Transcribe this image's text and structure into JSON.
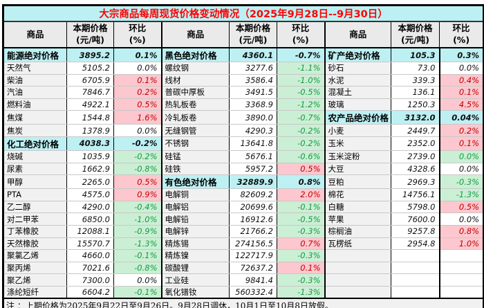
{
  "title": "大宗商品每周现货价格变动情况（2025年9月28日--9月30日）",
  "header": {
    "commodity": "商品",
    "price_top": "本期价格",
    "price_bottom": "(元/吨)",
    "change_top": "环比",
    "change_bottom": "(%)"
  },
  "note": "注 ：上期价格为2025年9月22日至9月26日。9月28日调休，10月1日至10月8日放假。",
  "colors": {
    "title_bar_bg": "#BDF0F3",
    "title_text": "#FF0000",
    "category_row_bg": "#BDF0F3",
    "increase_bg": "#FCC7CE",
    "increase_text": "#C00000",
    "decrease_bg": "#CBEFD4",
    "decrease_text": "#169A44",
    "header_bg": "#EAEAEA",
    "name_col_bg": "#F1F1F1",
    "note_bg": "#F1F1F1"
  },
  "groups": [
    {
      "rows": [
        {
          "name": "能源绝对价格",
          "price": "3895.2",
          "change": "0.1%",
          "style": "category"
        },
        {
          "name": "天然气",
          "price": "5105.2",
          "change": "0.0%",
          "style": "flat"
        },
        {
          "name": "柴油",
          "price": "6705.9",
          "change": "0.1%",
          "style": "up"
        },
        {
          "name": "汽油",
          "price": "7846.7",
          "change": "0.2%",
          "style": "up"
        },
        {
          "name": "燃料油",
          "price": "4922.1",
          "change": "0.5%",
          "style": "up"
        },
        {
          "name": "焦煤",
          "price": "1544.8",
          "change": "1.6%",
          "style": "up"
        },
        {
          "name": "焦炭",
          "price": "1378.9",
          "change": "0.0%",
          "style": "flat"
        },
        {
          "name": "化工绝对价格",
          "price": "4038.3",
          "change": "-0.2%",
          "style": "category"
        },
        {
          "name": "烧碱",
          "price": "1035.9",
          "change": "-0.2%",
          "style": "down"
        },
        {
          "name": "尿素",
          "price": "1662.9",
          "change": "-0.8%",
          "style": "down"
        },
        {
          "name": "甲醇",
          "price": "2265.0",
          "change": "0.5%",
          "style": "up"
        },
        {
          "name": "PTA",
          "price": "4575.0",
          "change": "0.9%",
          "style": "up"
        },
        {
          "name": "乙二醇",
          "price": "4290.0",
          "change": "-0.4%",
          "style": "down"
        },
        {
          "name": "对二甲苯",
          "price": "6850.0",
          "change": "-1.0%",
          "style": "down"
        },
        {
          "name": "丁苯橡胶",
          "price": "12088.1",
          "change": "-0.9%",
          "style": "down"
        },
        {
          "name": "天然橡胶",
          "price": "15570.7",
          "change": "-1.3%",
          "style": "down"
        },
        {
          "name": "聚氯乙烯",
          "price": "4660.0",
          "change": "-0.1%",
          "style": "down"
        },
        {
          "name": "聚丙烯",
          "price": "7021.6",
          "change": "-0.8%",
          "style": "down"
        },
        {
          "name": "聚乙烯",
          "price": "7300.0",
          "change": "0.0%",
          "style": "flat"
        },
        {
          "name": "涤纶短纤",
          "price": "6604.2",
          "change": "-0.1%",
          "style": "down"
        }
      ]
    },
    {
      "rows": [
        {
          "name": "黑色绝对价格",
          "price": "4360.1",
          "change": "-0.7%",
          "style": "category"
        },
        {
          "name": "螺纹钢",
          "price": "3277.6",
          "change": "-1.1%",
          "style": "down"
        },
        {
          "name": "线材",
          "price": "3586.4",
          "change": "-1.0%",
          "style": "down"
        },
        {
          "name": "普碳中厚板",
          "price": "3491.5",
          "change": "-0.5%",
          "style": "down"
        },
        {
          "name": "热轧板卷",
          "price": "3368.9",
          "change": "-1.2%",
          "style": "down"
        },
        {
          "name": "冷轧板卷",
          "price": "3890.0",
          "change": "-0.7%",
          "style": "down"
        },
        {
          "name": "无缝钢管",
          "price": "4290.3",
          "change": "-0.2%",
          "style": "down"
        },
        {
          "name": "不锈钢",
          "price": "13641.8",
          "change": "-0.2%",
          "style": "down"
        },
        {
          "name": "硅锰",
          "price": "5676.1",
          "change": "-0.6%",
          "style": "down"
        },
        {
          "name": "硅铁",
          "price": "5957.2",
          "change": "0.5%",
          "style": "up"
        },
        {
          "name": "有色绝对价格",
          "price": "32889.9",
          "change": "0.8%",
          "style": "category"
        },
        {
          "name": "电解铜",
          "price": "82609.2",
          "change": "2.0%",
          "style": "up"
        },
        {
          "name": "电解铝",
          "price": "20699.6",
          "change": "-0.1%",
          "style": "down"
        },
        {
          "name": "电解铅",
          "price": "16912.6",
          "change": "-0.5%",
          "style": "down"
        },
        {
          "name": "电解锌",
          "price": "21766.2",
          "change": "-0.3%",
          "style": "down"
        },
        {
          "name": "精炼锡",
          "price": "274156.5",
          "change": "0.7%",
          "style": "up"
        },
        {
          "name": "精炼镍",
          "price": "122717.9",
          "change": "-0.3%",
          "style": "down"
        },
        {
          "name": "碳酸锂",
          "price": "72637.2",
          "change": "0.1%",
          "style": "up"
        },
        {
          "name": "工业硅",
          "price": "9841.4",
          "change": "-0.3%",
          "style": "down"
        },
        {
          "name": "氧化镨钕",
          "price": "560332.4",
          "change": "-1.3%",
          "style": "down"
        }
      ]
    },
    {
      "rows": [
        {
          "name": "矿产绝对价格",
          "price": "105.3",
          "change": "0.3%",
          "style": "category"
        },
        {
          "name": "砂石",
          "price": "73.0",
          "change": "0.0%",
          "style": "flat"
        },
        {
          "name": "水泥",
          "price": "339.3",
          "change": "0.4%",
          "style": "up"
        },
        {
          "name": "混凝土",
          "price": "136.1",
          "change": "0.1%",
          "style": "up"
        },
        {
          "name": "玻璃",
          "price": "1250.3",
          "change": "4.5%",
          "style": "up"
        },
        {
          "name": "农产品绝对价格",
          "price": "3132.0",
          "change": "0.04%",
          "style": "category"
        },
        {
          "name": "小麦",
          "price": "2449.7",
          "change": "0.2%",
          "style": "up"
        },
        {
          "name": "玉米",
          "price": "2352.0",
          "change": "0.1%",
          "style": "up"
        },
        {
          "name": "玉米淀粉",
          "price": "2739.0",
          "change": "0.0%",
          "style": "down"
        },
        {
          "name": "大豆",
          "price": "4328.6",
          "change": "0.0%",
          "style": "flat"
        },
        {
          "name": "豆粕",
          "price": "2969.3",
          "change": "-0.3%",
          "style": "down"
        },
        {
          "name": "棉花",
          "price": "14756.1",
          "change": "-1.3%",
          "style": "down"
        },
        {
          "name": "白糖",
          "price": "5798.0",
          "change": "0.5%",
          "style": "up"
        },
        {
          "name": "苹果",
          "price": "7600.0",
          "change": "0.0%",
          "style": "flat"
        },
        {
          "name": "棕榈油",
          "price": "9257.8",
          "change": "0.8%",
          "style": "up"
        },
        {
          "name": "瓦楞纸",
          "price": "2954.8",
          "change": "1.0%",
          "style": "up"
        },
        {
          "name": "",
          "price": "",
          "change": "",
          "style": "empty"
        },
        {
          "name": "",
          "price": "",
          "change": "",
          "style": "empty"
        },
        {
          "name": "",
          "price": "",
          "change": "",
          "style": "empty"
        },
        {
          "name": "",
          "price": "",
          "change": "",
          "style": "empty"
        }
      ]
    }
  ]
}
